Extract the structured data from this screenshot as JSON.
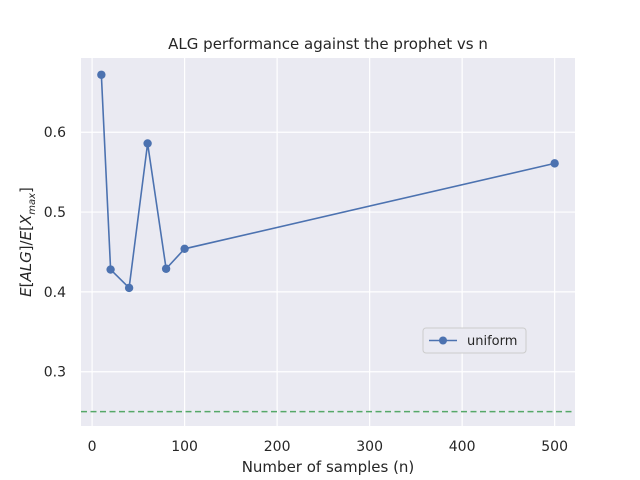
{
  "chart_data": {
    "type": "line",
    "title": "ALG performance against the prophet vs n",
    "xlabel": "Number of samples (n)",
    "ylabel": "E[ALG]/E[X_max]",
    "xlim": [
      -12,
      522
    ],
    "ylim": [
      0.232,
      0.693
    ],
    "x_ticks": [
      0,
      100,
      200,
      300,
      400,
      500
    ],
    "y_ticks": [
      0.3,
      0.4,
      0.5,
      0.6
    ],
    "x_tick_labels": [
      "0",
      "100",
      "200",
      "300",
      "400",
      "500"
    ],
    "y_tick_labels": [
      "0.3",
      "0.4",
      "0.5",
      "0.6"
    ],
    "grid": true,
    "legend_position": "center-right",
    "series": [
      {
        "name": "uniform",
        "color": "#4c72b0",
        "x": [
          10,
          20,
          40,
          60,
          80,
          100,
          500
        ],
        "y": [
          0.672,
          0.428,
          0.405,
          0.586,
          0.429,
          0.454,
          0.561
        ]
      }
    ],
    "reference_lines": [
      {
        "y": 0.25,
        "color": "#55a868",
        "style": "dashed"
      }
    ],
    "colors": {
      "background": "#eaeaf2",
      "grid": "#ffffff"
    }
  }
}
